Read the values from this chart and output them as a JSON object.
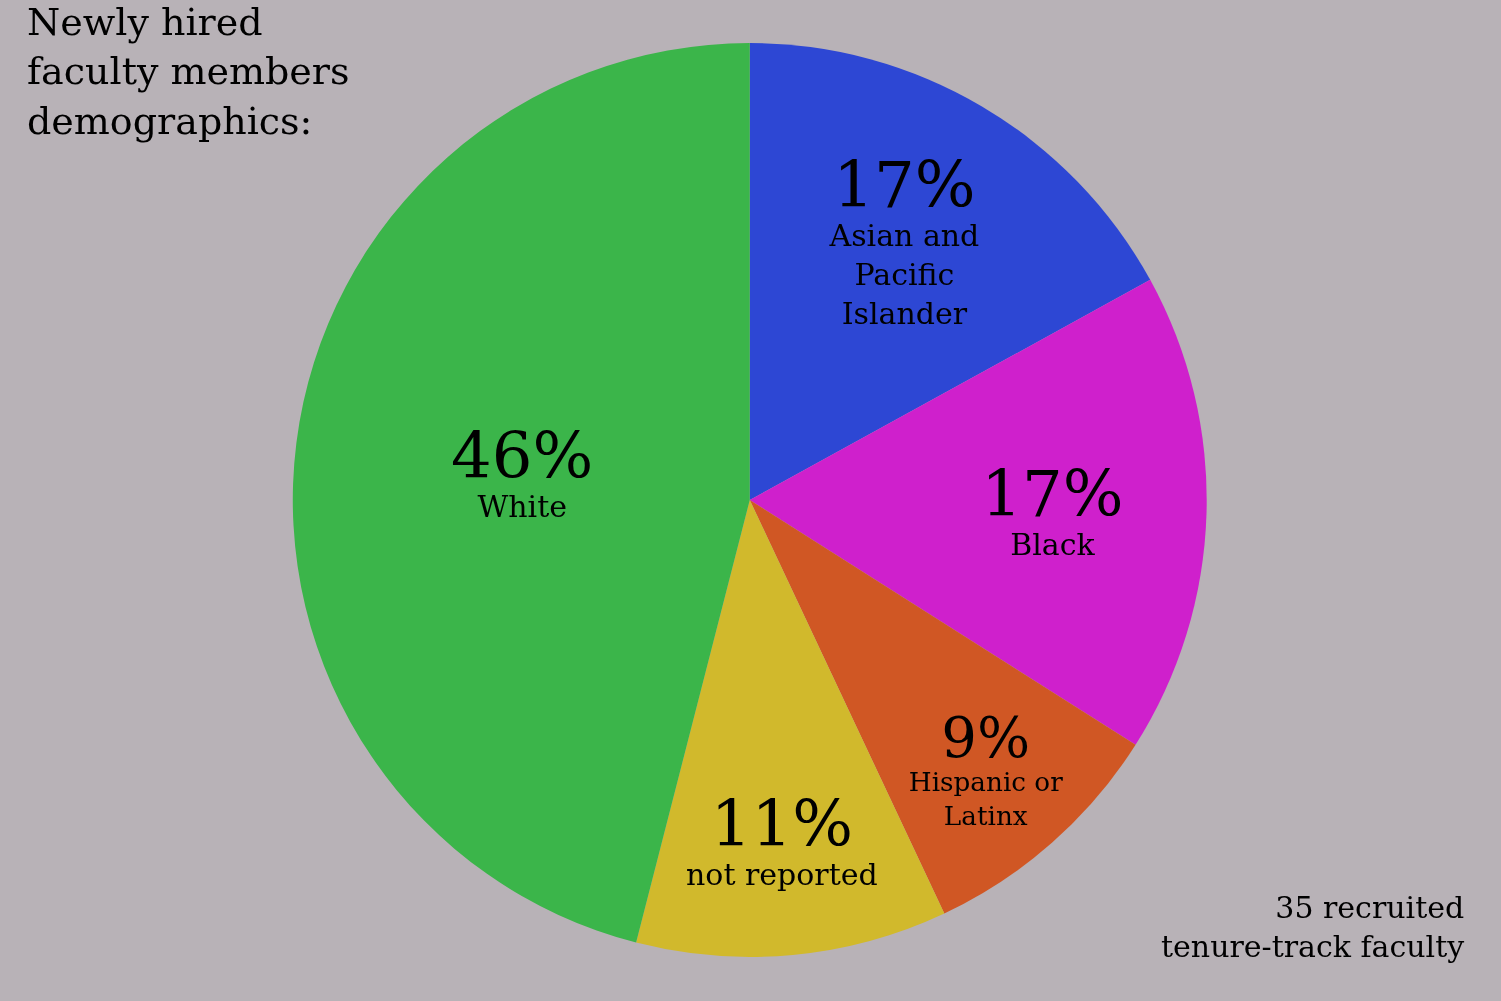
{
  "chart_data": {
    "type": "pie",
    "title": "Newly hired faculty members demographics:",
    "categories": [
      "Asian and Pacific Islander",
      "Black",
      "Hispanic or Latinx",
      "not reported",
      "White"
    ],
    "values": [
      17,
      17,
      9,
      11,
      46
    ],
    "value_labels": [
      "17%",
      "17%",
      "9%",
      "11%",
      "46%"
    ],
    "colors": [
      "#2d47d4",
      "#cf20cc",
      "#d05724",
      "#d1b92c",
      "#3bb54a"
    ],
    "legend": false,
    "annotations": [
      "35 recruited tenure-track faculty"
    ]
  }
}
